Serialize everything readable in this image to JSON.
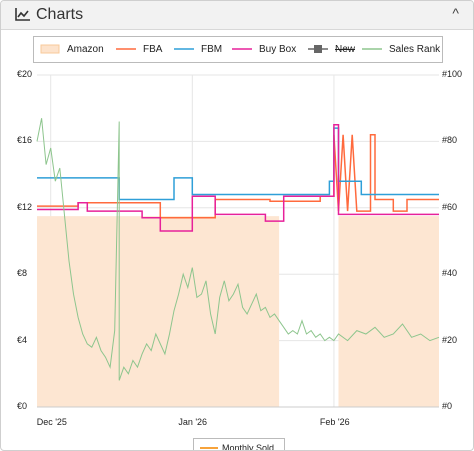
{
  "panel": {
    "title": "Charts",
    "title_icon": "line-chart-icon",
    "collapse_icon": "chevron-up-icon",
    "collapse_glyph": "^"
  },
  "legend": [
    {
      "label": "Amazon",
      "color": "#f8c99a"
    },
    {
      "label": "FBA",
      "color": "#ff6a3d"
    },
    {
      "label": "FBM",
      "color": "#2f9fd8"
    },
    {
      "label": "Buy Box",
      "color": "#e7219a"
    },
    {
      "label": "New",
      "color": "#666666",
      "strikethrough": true
    },
    {
      "label": "Sales Rank",
      "color": "#8dc58d"
    }
  ],
  "secondary_legend": {
    "label": "Monthly Sold",
    "color": "#f7a33b"
  },
  "chart_data": {
    "type": "line",
    "x_type": "date",
    "x_ticks": [
      "Dec '25",
      "Jan '26",
      "Feb '26"
    ],
    "x_tick_dates": [
      "2025-12-01",
      "2026-01-01",
      "2026-02-01"
    ],
    "xlim": [
      "2025-11-28",
      "2026-02-24"
    ],
    "ylabel_left_ticks": [
      "€0",
      "€4",
      "€8",
      "€12",
      "€16",
      "€20"
    ],
    "ylim_left": [
      0,
      20
    ],
    "ylabel_right_ticks": [
      "#0",
      "#20",
      "#40",
      "#60",
      "#80",
      "#100"
    ],
    "ylim_right": [
      0,
      100
    ],
    "grid": true,
    "legend_position": "top",
    "series": [
      {
        "name": "Amazon",
        "axis": "left",
        "style": "area",
        "points": [
          [
            "2025-11-28",
            11.5
          ],
          [
            "2026-01-20",
            11.5
          ],
          [
            "2026-01-20",
            0
          ],
          [
            "2026-02-02",
            0
          ],
          [
            "2026-02-02",
            11.5
          ],
          [
            "2026-02-24",
            11.5
          ]
        ]
      },
      {
        "name": "FBA",
        "axis": "left",
        "points": [
          [
            "2025-11-28",
            12.1
          ],
          [
            "2025-12-07",
            12.1
          ],
          [
            "2025-12-07",
            12.3
          ],
          [
            "2025-12-25",
            12.3
          ],
          [
            "2025-12-25",
            11.4
          ],
          [
            "2026-01-06",
            11.4
          ],
          [
            "2026-01-06",
            12.5
          ],
          [
            "2026-01-18",
            12.5
          ],
          [
            "2026-01-18",
            12.4
          ],
          [
            "2026-01-29",
            12.4
          ],
          [
            "2026-01-29",
            12.7
          ],
          [
            "2026-02-01",
            12.7
          ],
          [
            "2026-02-01",
            16.4
          ],
          [
            "2026-02-02",
            11.8
          ],
          [
            "2026-02-03",
            16.4
          ],
          [
            "2026-02-04",
            11.8
          ],
          [
            "2026-02-05",
            16.4
          ],
          [
            "2026-02-06",
            11.8
          ],
          [
            "2026-02-09",
            11.8
          ],
          [
            "2026-02-09",
            16.4
          ],
          [
            "2026-02-10",
            16.4
          ],
          [
            "2026-02-10",
            12.5
          ],
          [
            "2026-02-14",
            12.5
          ],
          [
            "2026-02-14",
            11.8
          ],
          [
            "2026-02-17",
            11.8
          ],
          [
            "2026-02-17",
            12.5
          ],
          [
            "2026-02-24",
            12.5
          ]
        ]
      },
      {
        "name": "FBM",
        "axis": "left",
        "points": [
          [
            "2025-11-28",
            13.8
          ],
          [
            "2025-12-16",
            13.8
          ],
          [
            "2025-12-16",
            12.5
          ],
          [
            "2025-12-28",
            12.5
          ],
          [
            "2025-12-28",
            13.8
          ],
          [
            "2026-01-01",
            13.8
          ],
          [
            "2026-01-01",
            12.8
          ],
          [
            "2026-01-31",
            12.8
          ],
          [
            "2026-01-31",
            13.6
          ],
          [
            "2026-02-01",
            13.6
          ],
          [
            "2026-02-01",
            16.8
          ],
          [
            "2026-02-02",
            16.8
          ],
          [
            "2026-02-02",
            13.6
          ],
          [
            "2026-02-07",
            13.6
          ],
          [
            "2026-02-07",
            12.8
          ],
          [
            "2026-02-24",
            12.8
          ]
        ]
      },
      {
        "name": "Buy Box",
        "axis": "left",
        "points": [
          [
            "2025-11-28",
            11.9
          ],
          [
            "2025-12-07",
            11.9
          ],
          [
            "2025-12-07",
            12.3
          ],
          [
            "2025-12-09",
            12.3
          ],
          [
            "2025-12-09",
            11.8
          ],
          [
            "2025-12-21",
            11.8
          ],
          [
            "2025-12-21",
            11.4
          ],
          [
            "2025-12-25",
            11.4
          ],
          [
            "2025-12-25",
            10.6
          ],
          [
            "2026-01-01",
            10.6
          ],
          [
            "2026-01-01",
            12.7
          ],
          [
            "2026-01-06",
            12.7
          ],
          [
            "2026-01-06",
            11.6
          ],
          [
            "2026-01-17",
            11.6
          ],
          [
            "2026-01-17",
            11.2
          ],
          [
            "2026-01-21",
            11.2
          ],
          [
            "2026-01-21",
            12.7
          ],
          [
            "2026-02-01",
            12.7
          ],
          [
            "2026-02-01",
            17.0
          ],
          [
            "2026-02-02",
            17.0
          ],
          [
            "2026-02-02",
            11.6
          ],
          [
            "2026-02-24",
            11.6
          ]
        ]
      },
      {
        "name": "Sales Rank",
        "axis": "right",
        "points": [
          [
            "2025-11-28",
            80
          ],
          [
            "2025-11-29",
            87
          ],
          [
            "2025-11-30",
            73
          ],
          [
            "2025-12-01",
            78
          ],
          [
            "2025-12-02",
            68
          ],
          [
            "2025-12-03",
            72
          ],
          [
            "2025-12-04",
            58
          ],
          [
            "2025-12-05",
            44
          ],
          [
            "2025-12-06",
            34
          ],
          [
            "2025-12-07",
            27
          ],
          [
            "2025-12-08",
            22
          ],
          [
            "2025-12-09",
            19
          ],
          [
            "2025-12-10",
            18
          ],
          [
            "2025-12-11",
            21
          ],
          [
            "2025-12-12",
            17
          ],
          [
            "2025-12-13",
            15
          ],
          [
            "2025-12-14",
            12
          ],
          [
            "2025-12-15",
            23
          ],
          [
            "2025-12-16",
            86
          ],
          [
            "2025-12-16",
            8
          ],
          [
            "2025-12-17",
            12
          ],
          [
            "2025-12-18",
            10
          ],
          [
            "2025-12-19",
            14
          ],
          [
            "2025-12-20",
            12
          ],
          [
            "2025-12-21",
            16
          ],
          [
            "2025-12-22",
            19
          ],
          [
            "2025-12-23",
            17
          ],
          [
            "2025-12-24",
            22
          ],
          [
            "2025-12-26",
            16
          ],
          [
            "2025-12-27",
            22
          ],
          [
            "2025-12-28",
            29
          ],
          [
            "2025-12-29",
            34
          ],
          [
            "2025-12-30",
            40
          ],
          [
            "2025-12-31",
            36
          ],
          [
            "2026-01-01",
            42
          ],
          [
            "2026-01-02",
            33
          ],
          [
            "2026-01-03",
            34
          ],
          [
            "2026-01-04",
            38
          ],
          [
            "2026-01-05",
            28
          ],
          [
            "2026-01-06",
            22
          ],
          [
            "2026-01-07",
            33
          ],
          [
            "2026-01-08",
            38
          ],
          [
            "2026-01-09",
            32
          ],
          [
            "2026-01-10",
            34
          ],
          [
            "2026-01-11",
            37
          ],
          [
            "2026-01-12",
            30
          ],
          [
            "2026-01-13",
            28
          ],
          [
            "2026-01-14",
            31
          ],
          [
            "2026-01-15",
            34
          ],
          [
            "2026-01-16",
            29
          ],
          [
            "2026-01-17",
            30
          ],
          [
            "2026-01-18",
            27
          ],
          [
            "2026-01-19",
            28
          ],
          [
            "2026-01-20",
            26
          ],
          [
            "2026-01-21",
            24
          ],
          [
            "2026-01-22",
            22
          ],
          [
            "2026-01-23",
            23
          ],
          [
            "2026-01-24",
            22
          ],
          [
            "2026-01-25",
            26
          ],
          [
            "2026-01-26",
            22
          ],
          [
            "2026-01-27",
            23
          ],
          [
            "2026-01-28",
            21
          ],
          [
            "2026-01-29",
            22
          ],
          [
            "2026-01-30",
            20
          ],
          [
            "2026-01-31",
            21
          ],
          [
            "2026-02-01",
            20
          ],
          [
            "2026-02-02",
            22
          ],
          [
            "2026-02-04",
            20
          ],
          [
            "2026-02-06",
            23
          ],
          [
            "2026-02-08",
            22
          ],
          [
            "2026-02-10",
            24
          ],
          [
            "2026-02-12",
            21
          ],
          [
            "2026-02-14",
            22
          ],
          [
            "2026-02-16",
            25
          ],
          [
            "2026-02-18",
            21
          ],
          [
            "2026-02-20",
            22
          ],
          [
            "2026-02-22",
            20
          ],
          [
            "2026-02-24",
            21
          ]
        ]
      }
    ]
  }
}
